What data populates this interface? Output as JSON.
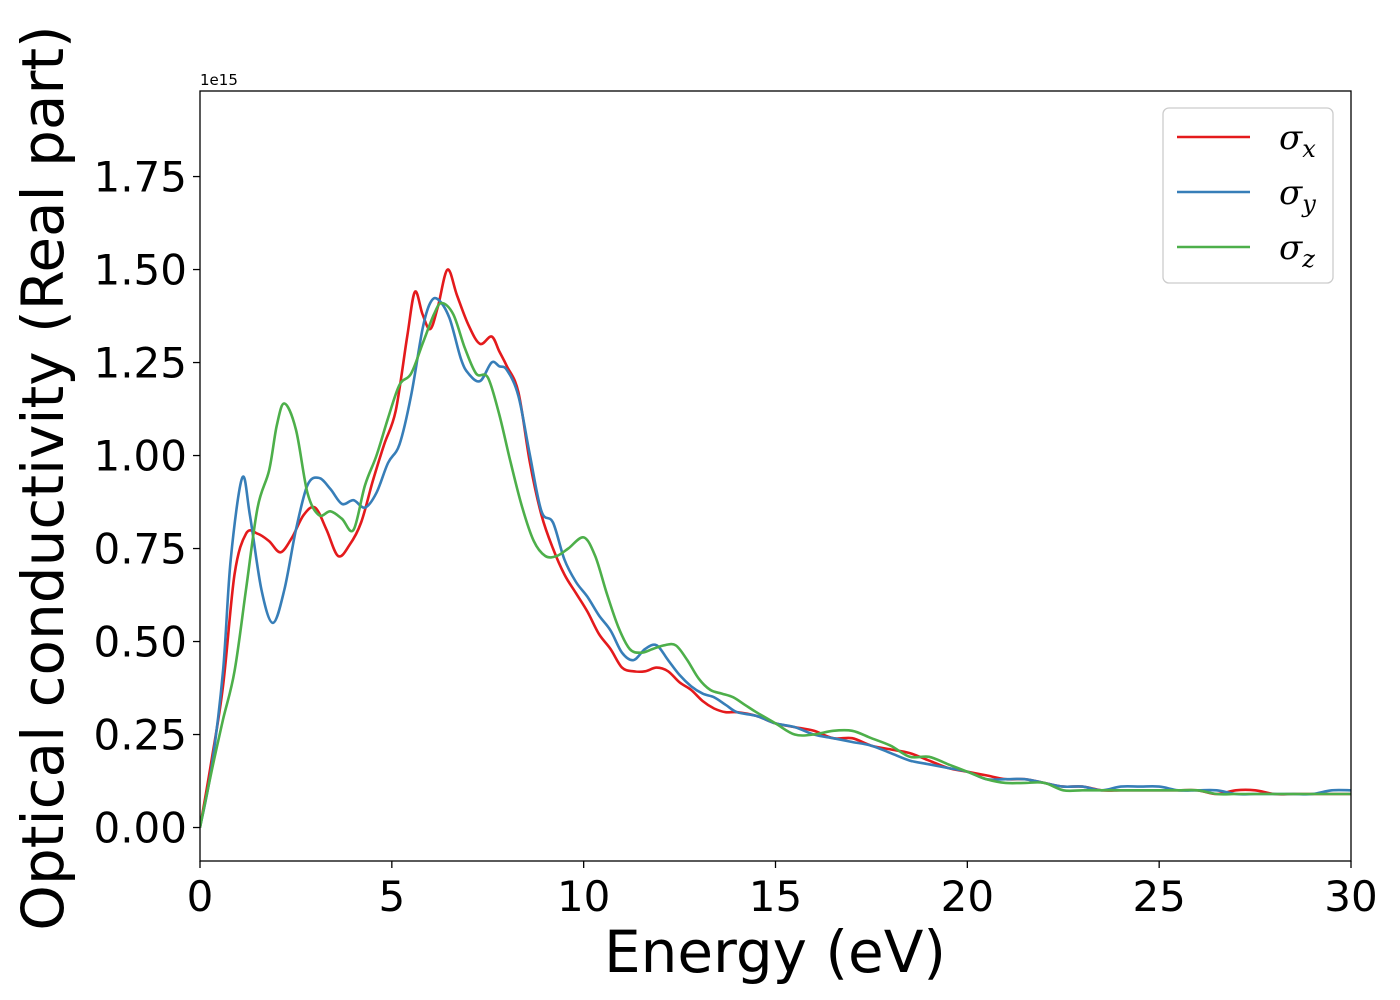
{
  "chart_data": {
    "type": "line",
    "title": "",
    "xlabel": "Energy (eV)",
    "ylabel": "Optical conductivity (Real part)",
    "y_offset_label": "1e15",
    "xlim": [
      0,
      30
    ],
    "ylim": [
      -0.09,
      1.98
    ],
    "x_ticks": [
      0,
      5,
      10,
      15,
      20,
      25,
      30
    ],
    "x_tick_labels": [
      "0",
      "5",
      "10",
      "15",
      "20",
      "25",
      "30"
    ],
    "y_ticks": [
      0.0,
      0.25,
      0.5,
      0.75,
      1.0,
      1.25,
      1.5,
      1.75
    ],
    "y_tick_labels": [
      "0.00",
      "0.25",
      "0.50",
      "0.75",
      "1.00",
      "1.25",
      "1.50",
      "1.75"
    ],
    "grid": false,
    "legend_position": "top-right",
    "series": [
      {
        "name": "σx",
        "symbol": "σ",
        "subscript": "x",
        "color": "#e41a1c",
        "x": [
          0,
          0.3,
          0.6,
          0.9,
          1.2,
          1.5,
          1.8,
          2.1,
          2.4,
          2.7,
          3.0,
          3.3,
          3.6,
          3.9,
          4.2,
          4.5,
          4.8,
          5.1,
          5.4,
          5.6,
          5.8,
          6.0,
          6.2,
          6.45,
          6.7,
          7.0,
          7.3,
          7.6,
          7.8,
          8.0,
          8.3,
          8.6,
          8.9,
          9.2,
          9.5,
          9.8,
          10.1,
          10.4,
          10.7,
          11.0,
          11.3,
          11.6,
          11.9,
          12.2,
          12.5,
          12.8,
          13.1,
          13.4,
          13.7,
          14.0,
          14.5,
          15.0,
          15.5,
          16.0,
          16.5,
          17.0,
          17.5,
          18.0,
          18.5,
          19.0,
          19.5,
          20.0,
          20.5,
          21.0,
          21.5,
          22.0,
          22.5,
          23.0,
          23.5,
          24.0,
          24.5,
          25.0,
          25.5,
          26.0,
          26.5,
          27.0,
          27.5,
          28.0,
          28.5,
          29.0,
          29.5,
          30.0
        ],
        "y": [
          0.0,
          0.18,
          0.38,
          0.68,
          0.79,
          0.79,
          0.77,
          0.74,
          0.78,
          0.84,
          0.86,
          0.8,
          0.73,
          0.76,
          0.82,
          0.93,
          1.03,
          1.12,
          1.32,
          1.44,
          1.38,
          1.34,
          1.4,
          1.5,
          1.43,
          1.35,
          1.3,
          1.32,
          1.28,
          1.24,
          1.17,
          0.98,
          0.84,
          0.75,
          0.68,
          0.63,
          0.58,
          0.52,
          0.48,
          0.43,
          0.42,
          0.42,
          0.43,
          0.42,
          0.39,
          0.37,
          0.34,
          0.32,
          0.31,
          0.31,
          0.3,
          0.28,
          0.27,
          0.26,
          0.24,
          0.24,
          0.22,
          0.21,
          0.2,
          0.18,
          0.16,
          0.15,
          0.14,
          0.13,
          0.13,
          0.12,
          0.11,
          0.11,
          0.1,
          0.1,
          0.1,
          0.1,
          0.1,
          0.1,
          0.09,
          0.1,
          0.1,
          0.09,
          0.09,
          0.09,
          0.09,
          0.09
        ]
      },
      {
        "name": "σy",
        "symbol": "σ",
        "subscript": "y",
        "color": "#377eb8",
        "x": [
          0,
          0.3,
          0.6,
          0.8,
          1.1,
          1.3,
          1.6,
          1.9,
          2.2,
          2.5,
          2.8,
          3.1,
          3.4,
          3.7,
          4.0,
          4.3,
          4.6,
          4.9,
          5.2,
          5.5,
          5.8,
          6.0,
          6.2,
          6.5,
          6.8,
          7.0,
          7.3,
          7.6,
          7.8,
          8.0,
          8.3,
          8.6,
          8.9,
          9.2,
          9.5,
          9.8,
          10.1,
          10.4,
          10.7,
          11.0,
          11.3,
          11.6,
          11.9,
          12.2,
          12.5,
          12.8,
          13.1,
          13.4,
          13.7,
          14.0,
          14.5,
          15.0,
          15.5,
          16.0,
          16.5,
          17.0,
          17.5,
          18.0,
          18.5,
          19.0,
          19.5,
          20.0,
          20.5,
          21.0,
          21.5,
          22.0,
          22.5,
          23.0,
          23.5,
          24.0,
          24.5,
          25.0,
          25.5,
          26.0,
          26.5,
          27.0,
          27.5,
          28.0,
          28.5,
          29.0,
          29.5,
          30.0
        ],
        "y": [
          0.0,
          0.16,
          0.42,
          0.72,
          0.94,
          0.84,
          0.64,
          0.55,
          0.64,
          0.8,
          0.92,
          0.94,
          0.91,
          0.87,
          0.88,
          0.86,
          0.9,
          0.98,
          1.03,
          1.16,
          1.34,
          1.41,
          1.42,
          1.37,
          1.26,
          1.22,
          1.2,
          1.25,
          1.24,
          1.23,
          1.16,
          1.0,
          0.85,
          0.82,
          0.72,
          0.66,
          0.62,
          0.57,
          0.53,
          0.47,
          0.45,
          0.48,
          0.49,
          0.45,
          0.41,
          0.38,
          0.36,
          0.35,
          0.33,
          0.31,
          0.3,
          0.28,
          0.27,
          0.25,
          0.24,
          0.23,
          0.22,
          0.2,
          0.18,
          0.17,
          0.16,
          0.15,
          0.13,
          0.13,
          0.13,
          0.12,
          0.11,
          0.11,
          0.1,
          0.11,
          0.11,
          0.11,
          0.1,
          0.1,
          0.1,
          0.09,
          0.09,
          0.09,
          0.09,
          0.09,
          0.1,
          0.1
        ]
      },
      {
        "name": "σz",
        "symbol": "σ",
        "subscript": "z",
        "color": "#4daf4a",
        "x": [
          0,
          0.3,
          0.6,
          0.9,
          1.2,
          1.5,
          1.8,
          2.0,
          2.2,
          2.5,
          2.8,
          3.1,
          3.4,
          3.7,
          4.0,
          4.3,
          4.6,
          4.9,
          5.2,
          5.5,
          5.8,
          6.1,
          6.3,
          6.6,
          6.9,
          7.2,
          7.5,
          7.8,
          8.1,
          8.4,
          8.7,
          9.0,
          9.3,
          9.6,
          10.0,
          10.3,
          10.6,
          10.9,
          11.2,
          11.5,
          11.8,
          12.1,
          12.4,
          12.7,
          13.0,
          13.3,
          13.6,
          13.9,
          14.2,
          14.5,
          15.0,
          15.5,
          16.0,
          16.5,
          17.0,
          17.5,
          18.0,
          18.5,
          19.0,
          19.5,
          20.0,
          20.5,
          21.0,
          21.5,
          22.0,
          22.5,
          23.0,
          23.5,
          24.0,
          24.5,
          25.0,
          25.5,
          26.0,
          26.5,
          27.0,
          27.5,
          28.0,
          28.5,
          29.0,
          29.5,
          30.0
        ],
        "y": [
          0.0,
          0.15,
          0.29,
          0.42,
          0.64,
          0.86,
          0.96,
          1.08,
          1.14,
          1.07,
          0.9,
          0.84,
          0.85,
          0.83,
          0.8,
          0.92,
          1.0,
          1.1,
          1.19,
          1.22,
          1.3,
          1.38,
          1.41,
          1.38,
          1.29,
          1.22,
          1.21,
          1.11,
          0.98,
          0.86,
          0.77,
          0.73,
          0.73,
          0.75,
          0.78,
          0.73,
          0.63,
          0.54,
          0.48,
          0.47,
          0.48,
          0.49,
          0.49,
          0.45,
          0.4,
          0.37,
          0.36,
          0.35,
          0.33,
          0.31,
          0.28,
          0.25,
          0.25,
          0.26,
          0.26,
          0.24,
          0.22,
          0.19,
          0.19,
          0.17,
          0.15,
          0.13,
          0.12,
          0.12,
          0.12,
          0.1,
          0.1,
          0.1,
          0.1,
          0.1,
          0.1,
          0.1,
          0.1,
          0.09,
          0.09,
          0.09,
          0.09,
          0.09,
          0.09,
          0.09,
          0.09
        ]
      }
    ]
  }
}
